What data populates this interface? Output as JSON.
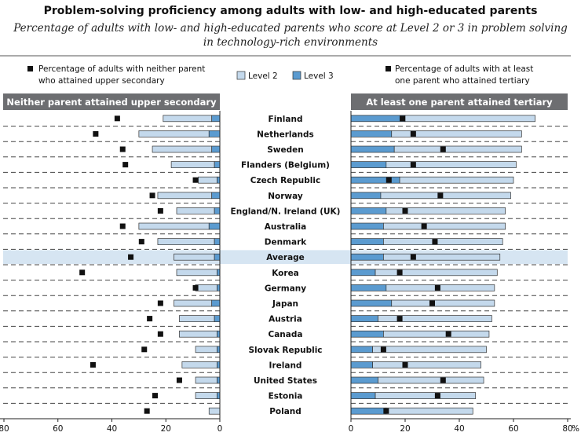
{
  "title": "Problem-solving proficiency among adults with low- and high-educated parents",
  "subtitle_line1": "Percentage of adults with low- and high-educated parents who score at Level 2 or 3 in problem solving",
  "subtitle_line2": "in technology-rich environments",
  "legend": {
    "marker_left_line1": "Percentage of adults with neither parent",
    "marker_left_line2": "who attained upper secondary",
    "level2": "Level 2",
    "level3": "Level 3",
    "marker_right_line1": "Percentage of adults with at least",
    "marker_right_line2": "one parent who attained tertiary"
  },
  "left_header": "Neither parent attained upper secondary",
  "right_header": "At least one parent attained tertiary",
  "colors": {
    "level2": "#c4d9ec",
    "level3": "#5b9bd0",
    "header_bg": "#6d6e71",
    "highlight": "#d6e5f2",
    "marker": "#111111"
  },
  "chart_data": {
    "type": "bar",
    "orientation": "horizontal",
    "categories": [
      "Finland",
      "Netherlands",
      "Sweden",
      "Flanders (Belgium)",
      "Czech Republic",
      "Norway",
      "England/N. Ireland (UK)",
      "Australia",
      "Denmark",
      "Average",
      "Korea",
      "Germany",
      "Japan",
      "Austria",
      "Canada",
      "Slovak Republic",
      "Ireland",
      "United States",
      "Estonia",
      "Poland"
    ],
    "highlight_category": "Average",
    "axis_ticks": [
      0,
      20,
      40,
      60,
      80
    ],
    "left_ticks": [
      "80",
      "60",
      "40",
      "20",
      "0"
    ],
    "right_ticks": [
      "0",
      "20",
      "40",
      "60",
      "80"
    ],
    "right_unit": "%",
    "xlim": [
      0,
      80
    ],
    "left": {
      "label": "Neither parent attained upper secondary",
      "series": [
        {
          "name": "Level 2",
          "values": [
            18,
            26,
            22,
            16,
            7,
            20,
            14,
            26,
            21,
            15,
            15,
            8,
            14,
            13,
            14,
            8,
            13,
            8,
            8,
            4
          ]
        },
        {
          "name": "Level 3",
          "values": [
            3,
            4,
            3,
            2,
            1,
            3,
            2,
            4,
            2,
            2,
            1,
            1,
            3,
            2,
            1,
            1,
            1,
            1,
            1,
            0
          ]
        }
      ],
      "marker": [
        38,
        46,
        36,
        35,
        9,
        25,
        22,
        36,
        29,
        33,
        51,
        9,
        22,
        26,
        22,
        28,
        47,
        15,
        24,
        27
      ]
    },
    "right": {
      "label": "At least one parent attained tertiary",
      "series": [
        {
          "name": "Level 2",
          "values": [
            48,
            48,
            47,
            48,
            42,
            48,
            44,
            45,
            44,
            43,
            45,
            40,
            38,
            42,
            39,
            42,
            40,
            39,
            37,
            32
          ]
        },
        {
          "name": "Level 3",
          "values": [
            20,
            15,
            16,
            13,
            18,
            11,
            13,
            12,
            12,
            12,
            9,
            13,
            15,
            10,
            12,
            8,
            8,
            10,
            9,
            13
          ]
        }
      ],
      "marker": [
        19,
        23,
        34,
        23,
        14,
        33,
        20,
        27,
        31,
        23,
        18,
        32,
        30,
        18,
        36,
        12,
        20,
        34,
        32,
        13
      ]
    }
  }
}
